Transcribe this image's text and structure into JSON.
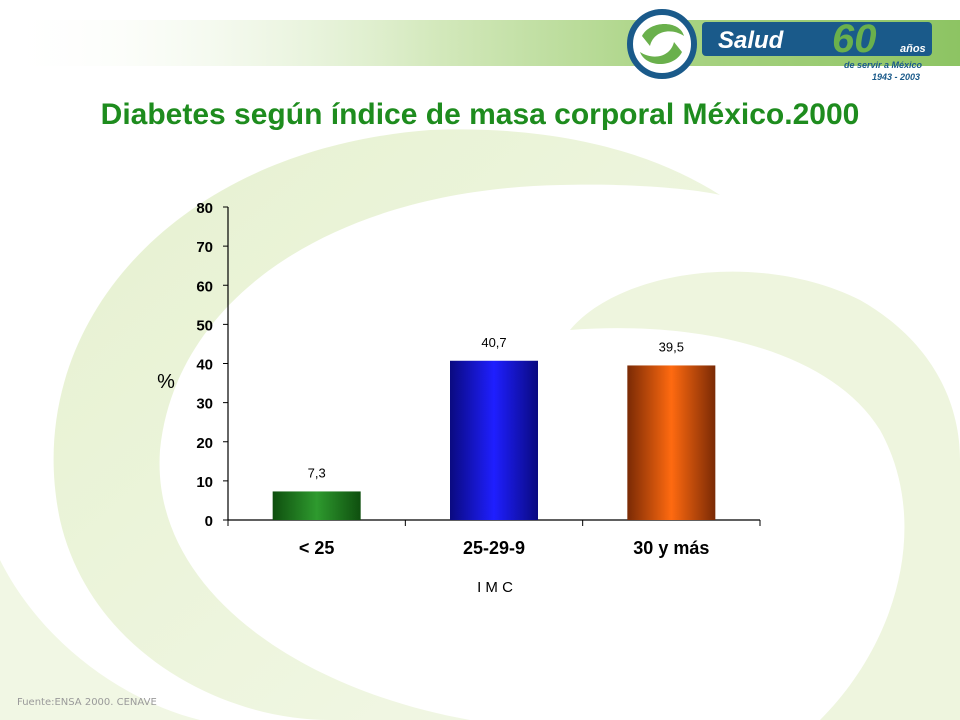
{
  "title": "Diabetes según índice de masa corporal México.2000",
  "footer": "Fuente:ENSA 2000. CENAVE",
  "logo": {
    "brand": "Salud",
    "anniversary_number": "60",
    "anniversary_word": "años",
    "tagline": "de servir a México",
    "years": "1943 - 2003"
  },
  "colors": {
    "title": "#1e8c1e",
    "banner": "#1a5a8a",
    "accent_green": "#6ab04c"
  },
  "chart_data": {
    "type": "bar",
    "categories": [
      "< 25",
      "25-29-9",
      "30 y más"
    ],
    "values": [
      7.3,
      40.7,
      39.5
    ],
    "value_labels": [
      "7,3",
      "40,7",
      "39,5"
    ],
    "bar_colors": [
      "#1f7a1f",
      "#1414d8",
      "#f06010"
    ],
    "xlabel": "I M C",
    "ylabel": "%",
    "ylim": [
      0,
      80
    ],
    "yticks": [
      0,
      10,
      20,
      30,
      40,
      50,
      60,
      70,
      80
    ],
    "grid": false,
    "legend": "none"
  }
}
